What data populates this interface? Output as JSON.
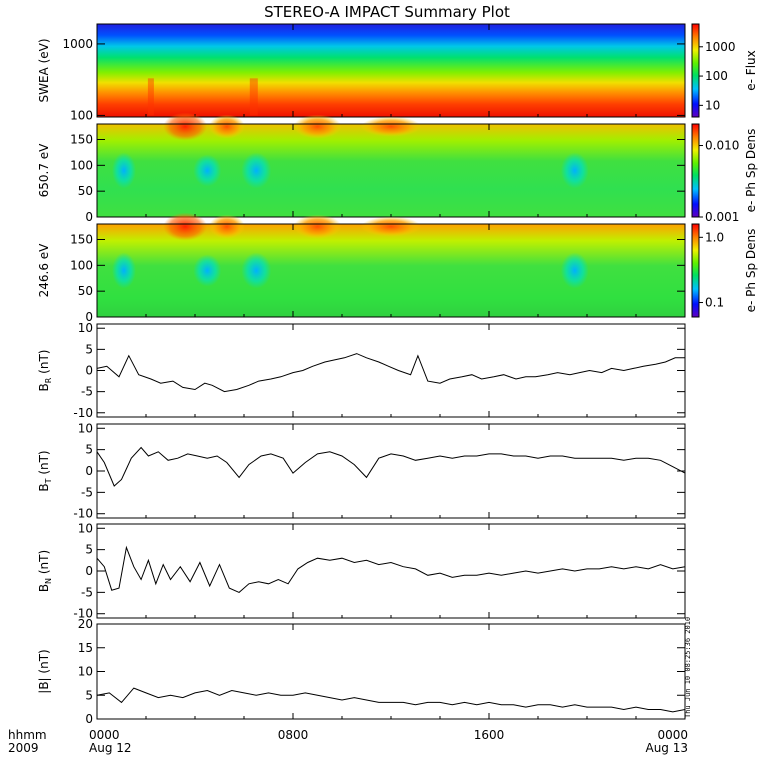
{
  "title": "STEREO-A IMPACT Summary Plot",
  "stamp": "Thu Jun 10 08:25:36 2010",
  "time_axis": {
    "corner_top": "hhmm",
    "corner_bottom": "2009",
    "ticks": [
      {
        "t": 0,
        "label": "0000",
        "sub": "Aug 12"
      },
      {
        "t": 8,
        "label": "0800",
        "sub": ""
      },
      {
        "t": 16,
        "label": "1600",
        "sub": ""
      },
      {
        "t": 24,
        "label": "0000",
        "sub": "Aug 13"
      }
    ],
    "range": [
      0,
      24
    ]
  },
  "chart_data": [
    {
      "type": "heatmap",
      "ylabel": "SWEA (eV)",
      "yscale": "log",
      "ylim": [
        95,
        1900
      ],
      "yticks": [
        {
          "v": 100,
          "label": "100"
        },
        {
          "v": 1000,
          "label": "1000"
        }
      ],
      "colorbar": {
        "label": "e- Flux",
        "scale": "log",
        "range": [
          4,
          6000
        ],
        "ticks": [
          {
            "v": 10,
            "label": "10"
          },
          {
            "v": 100,
            "label": "100"
          },
          {
            "v": 1000,
            "label": "1000"
          }
        ]
      },
      "description_bands": "energy spectrogram: high flux at low energy, low flux at high energy"
    },
    {
      "type": "heatmap",
      "ylabel": "650.7 eV",
      "ylim": [
        0,
        180
      ],
      "yticks": [
        {
          "v": 0,
          "label": "0"
        },
        {
          "v": 50,
          "label": "50"
        },
        {
          "v": 100,
          "label": "100"
        },
        {
          "v": 150,
          "label": "150"
        }
      ],
      "colorbar": {
        "label": "e- Ph Sp Dens",
        "scale": "log",
        "range": [
          0.001,
          0.02
        ],
        "ticks": [
          {
            "v": 0.001,
            "label": "0.001"
          },
          {
            "v": 0.01,
            "label": "0.010"
          }
        ]
      }
    },
    {
      "type": "heatmap",
      "ylabel": "246.6 eV",
      "ylim": [
        0,
        180
      ],
      "yticks": [
        {
          "v": 0,
          "label": "0"
        },
        {
          "v": 50,
          "label": "50"
        },
        {
          "v": 100,
          "label": "100"
        },
        {
          "v": 150,
          "label": "150"
        }
      ],
      "colorbar": {
        "label": "e- Ph Sp Dens",
        "scale": "log",
        "range": [
          0.06,
          1.6
        ],
        "ticks": [
          {
            "v": 0.1,
            "label": "0.1"
          },
          {
            "v": 1.0,
            "label": "1.0"
          }
        ]
      }
    },
    {
      "type": "line",
      "ylabel": "B",
      "ylabel_sub": "R",
      "ylabel_unit": "(nT)",
      "ylim": [
        -11,
        11
      ],
      "yticks": [
        {
          "v": -10,
          "label": "-10"
        },
        {
          "v": -5,
          "label": "-5"
        },
        {
          "v": 0,
          "label": "0"
        },
        {
          "v": 5,
          "label": "5"
        },
        {
          "v": 10,
          "label": "10"
        }
      ],
      "x": [
        0,
        0.4,
        0.9,
        1.3,
        1.7,
        2.2,
        2.6,
        3.1,
        3.5,
        4.0,
        4.4,
        4.7,
        5.2,
        5.7,
        6.2,
        6.6,
        7.1,
        7.5,
        8.0,
        8.4,
        8.8,
        9.3,
        9.7,
        10.1,
        10.6,
        11.0,
        11.5,
        11.9,
        12.3,
        12.8,
        13.1,
        13.5,
        14.0,
        14.4,
        14.9,
        15.3,
        15.7,
        16.2,
        16.6,
        17.1,
        17.5,
        17.9,
        18.4,
        18.8,
        19.3,
        19.7,
        20.1,
        20.6,
        21.0,
        21.5,
        21.9,
        22.3,
        22.8,
        23.2,
        23.6,
        24.0
      ],
      "values": [
        0.5,
        1.0,
        -1.5,
        3.5,
        -1.0,
        -2.0,
        -3.0,
        -2.5,
        -4.0,
        -4.5,
        -3.0,
        -3.5,
        -5.0,
        -4.5,
        -3.5,
        -2.5,
        -2.0,
        -1.5,
        -0.5,
        0.0,
        1.0,
        2.0,
        2.5,
        3.0,
        4.0,
        3.0,
        2.0,
        1.0,
        0.0,
        -1.0,
        3.5,
        -2.5,
        -3.0,
        -2.0,
        -1.5,
        -1.0,
        -2.0,
        -1.5,
        -1.0,
        -2.0,
        -1.5,
        -1.5,
        -1.0,
        -0.5,
        -1.0,
        -0.5,
        0.0,
        -0.5,
        0.5,
        0.0,
        0.5,
        1.0,
        1.5,
        2.0,
        3.0,
        3.0
      ]
    },
    {
      "type": "line",
      "ylabel": "B",
      "ylabel_sub": "T",
      "ylabel_unit": "(nT)",
      "ylim": [
        -11,
        11
      ],
      "yticks": [
        {
          "v": -10,
          "label": "-10"
        },
        {
          "v": -5,
          "label": "-5"
        },
        {
          "v": 0,
          "label": "0"
        },
        {
          "v": 5,
          "label": "5"
        },
        {
          "v": 10,
          "label": "10"
        }
      ],
      "x": [
        0,
        0.3,
        0.7,
        1.0,
        1.4,
        1.8,
        2.1,
        2.5,
        2.9,
        3.3,
        3.7,
        4.1,
        4.5,
        4.9,
        5.3,
        5.8,
        6.2,
        6.7,
        7.1,
        7.6,
        8.0,
        8.5,
        9.0,
        9.5,
        10.0,
        10.5,
        11.0,
        11.5,
        12.0,
        12.5,
        13.0,
        13.5,
        14.0,
        14.5,
        15.0,
        15.5,
        16.0,
        16.5,
        17.0,
        17.5,
        18.0,
        18.5,
        19.0,
        19.5,
        20.0,
        20.5,
        21.0,
        21.5,
        22.0,
        22.5,
        23.0,
        23.5,
        24.0
      ],
      "values": [
        4.5,
        2.0,
        -3.5,
        -2.0,
        3.0,
        5.5,
        3.5,
        4.5,
        2.5,
        3.0,
        4.0,
        3.5,
        3.0,
        3.5,
        2.0,
        -1.5,
        1.5,
        3.5,
        4.0,
        3.0,
        -0.5,
        2.0,
        4.0,
        4.5,
        3.5,
        1.5,
        -1.5,
        3.0,
        4.0,
        3.5,
        2.5,
        3.0,
        3.5,
        3.0,
        3.5,
        3.5,
        4.0,
        4.0,
        3.5,
        3.5,
        3.0,
        3.5,
        3.5,
        3.0,
        3.0,
        3.0,
        3.0,
        2.5,
        3.0,
        3.0,
        2.5,
        1.0,
        -0.5
      ]
    },
    {
      "type": "line",
      "ylabel": "B",
      "ylabel_sub": "N",
      "ylabel_unit": "(nT)",
      "ylim": [
        -11,
        11
      ],
      "yticks": [
        {
          "v": -10,
          "label": "-10"
        },
        {
          "v": -5,
          "label": "-5"
        },
        {
          "v": 0,
          "label": "0"
        },
        {
          "v": 5,
          "label": "5"
        },
        {
          "v": 10,
          "label": "10"
        }
      ],
      "x": [
        0,
        0.3,
        0.6,
        0.9,
        1.2,
        1.5,
        1.8,
        2.1,
        2.4,
        2.7,
        3.0,
        3.4,
        3.8,
        4.2,
        4.6,
        5.0,
        5.4,
        5.8,
        6.2,
        6.6,
        7.0,
        7.4,
        7.8,
        8.2,
        8.6,
        9.0,
        9.5,
        10.0,
        10.5,
        11.0,
        11.5,
        12.0,
        12.5,
        13.0,
        13.5,
        14.0,
        14.5,
        15.0,
        15.5,
        16.0,
        16.5,
        17.0,
        17.5,
        18.0,
        18.5,
        19.0,
        19.5,
        20.0,
        20.5,
        21.0,
        21.5,
        22.0,
        22.5,
        23.0,
        23.5,
        24.0
      ],
      "values": [
        3.0,
        1.0,
        -4.5,
        -4.0,
        5.5,
        1.0,
        -2.0,
        2.5,
        -3.0,
        1.5,
        -2.0,
        1.0,
        -2.5,
        2.0,
        -3.5,
        1.5,
        -4.0,
        -5.0,
        -3.0,
        -2.5,
        -3.0,
        -2.0,
        -3.0,
        0.5,
        2.0,
        3.0,
        2.5,
        3.0,
        2.0,
        2.5,
        1.5,
        2.0,
        1.0,
        0.5,
        -1.0,
        -0.5,
        -1.5,
        -1.0,
        -1.0,
        -0.5,
        -1.0,
        -0.5,
        0.0,
        -0.5,
        0.0,
        0.5,
        0.0,
        0.5,
        0.5,
        1.0,
        0.5,
        1.0,
        0.5,
        1.5,
        0.5,
        1.0
      ]
    },
    {
      "type": "line",
      "ylabel": "|B|",
      "ylabel_sub": "",
      "ylabel_unit": "(nT)",
      "ylim": [
        0,
        20
      ],
      "yticks": [
        {
          "v": 0,
          "label": "0"
        },
        {
          "v": 5,
          "label": "5"
        },
        {
          "v": 10,
          "label": "10"
        },
        {
          "v": 15,
          "label": "15"
        },
        {
          "v": 20,
          "label": "20"
        }
      ],
      "x": [
        0,
        0.5,
        1.0,
        1.5,
        2.0,
        2.5,
        3.0,
        3.5,
        4.0,
        4.5,
        5.0,
        5.5,
        6.0,
        6.5,
        7.0,
        7.5,
        8.0,
        8.5,
        9.0,
        9.5,
        10.0,
        10.5,
        11.0,
        11.5,
        12.0,
        12.5,
        13.0,
        13.5,
        14.0,
        14.5,
        15.0,
        15.5,
        16.0,
        16.5,
        17.0,
        17.5,
        18.0,
        18.5,
        19.0,
        19.5,
        20.0,
        20.5,
        21.0,
        21.5,
        22.0,
        22.5,
        23.0,
        23.5,
        24.0
      ],
      "values": [
        5.0,
        5.5,
        3.5,
        6.5,
        5.5,
        4.5,
        5.0,
        4.5,
        5.5,
        6.0,
        5.0,
        6.0,
        5.5,
        5.0,
        5.5,
        5.0,
        5.0,
        5.5,
        5.0,
        4.5,
        4.0,
        4.5,
        4.0,
        3.5,
        3.5,
        3.5,
        3.0,
        3.5,
        3.5,
        3.0,
        3.5,
        3.0,
        3.5,
        3.0,
        3.0,
        2.5,
        3.0,
        3.0,
        2.5,
        3.0,
        2.5,
        2.5,
        2.5,
        2.0,
        2.5,
        2.0,
        2.0,
        1.5,
        2.0
      ]
    }
  ]
}
